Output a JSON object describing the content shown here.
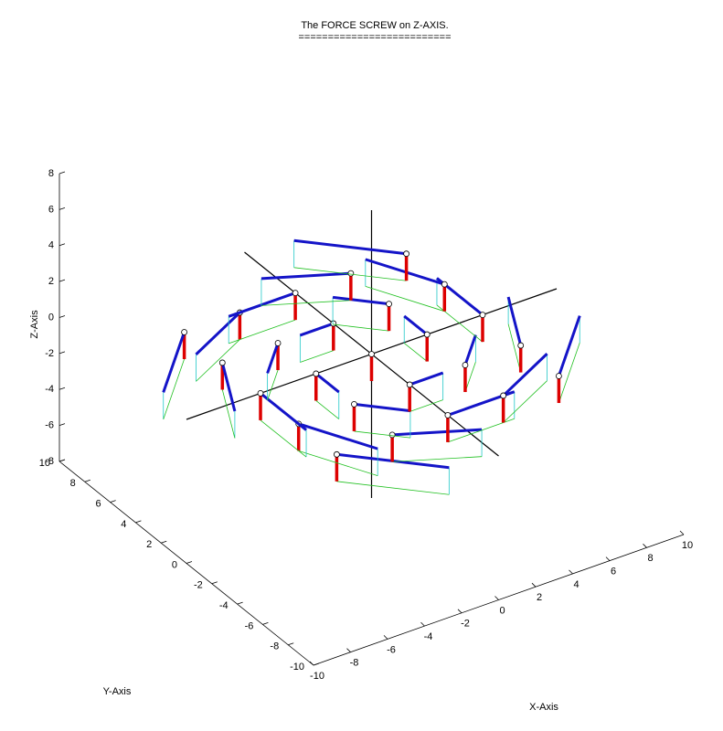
{
  "chart_data": {
    "type": "quiver3",
    "title": "The FORCE SCREW on Z-AXIS.",
    "subtitle": "==========================",
    "xlabel": "X-Axis",
    "ylabel": "Y-Axis",
    "zlabel": "Z-Axis",
    "xlim": [
      -10,
      10
    ],
    "ylim": [
      -10,
      10
    ],
    "zlim": [
      -8,
      8
    ],
    "xticks": [
      -10,
      -8,
      -6,
      -4,
      -2,
      0,
      2,
      4,
      6,
      8,
      10
    ],
    "yticks": [
      -10,
      -8,
      -6,
      -4,
      -2,
      0,
      2,
      4,
      6,
      8,
      10
    ],
    "zticks": [
      -8,
      -6,
      -4,
      -2,
      0,
      2,
      4,
      6,
      8
    ],
    "color": "#1414c8",
    "vertical_color": "#dd0000",
    "x": [
      -6,
      -3,
      0,
      3,
      6,
      -6,
      -3,
      0,
      3,
      6,
      -6,
      -3,
      0,
      3,
      6,
      -6,
      -3,
      0,
      3,
      6,
      -6,
      -3,
      0,
      3,
      6
    ],
    "y": [
      -6,
      -6,
      -6,
      -6,
      -6,
      -3,
      -3,
      -3,
      -3,
      -3,
      0,
      0,
      0,
      0,
      0,
      3,
      3,
      3,
      3,
      3,
      6,
      6,
      6,
      6,
      6
    ],
    "z": [
      0,
      0,
      0,
      0,
      0,
      0,
      0,
      0,
      0,
      0,
      0,
      0,
      0,
      0,
      0,
      0,
      0,
      0,
      0,
      0,
      0,
      0,
      0,
      0,
      0
    ],
    "u": [
      3.6,
      3.6,
      3.6,
      3.6,
      3.6,
      1.8,
      1.8,
      1.8,
      1.8,
      1.8,
      0,
      0,
      0,
      0,
      0,
      -1.8,
      -1.8,
      -1.8,
      -1.8,
      -1.8,
      -3.6,
      -3.6,
      -3.6,
      -3.6,
      -3.6
    ],
    "v": [
      -3.6,
      -1.8,
      0,
      1.8,
      3.6,
      -3.6,
      -1.8,
      0,
      1.8,
      3.6,
      -3.6,
      -1.8,
      0,
      1.8,
      3.6,
      -3.6,
      -1.8,
      0,
      1.8,
      3.6,
      -3.6,
      -1.8,
      0,
      1.8,
      3.6
    ],
    "w": [
      -1.5,
      -1.5,
      -1.5,
      -1.5,
      -1.5,
      -1.5,
      -1.5,
      -1.5,
      -1.5,
      -1.5,
      -1.5,
      -1.5,
      -1.5,
      -1.5,
      -1.5,
      -1.5,
      -1.5,
      -1.5,
      -1.5,
      -1.5,
      -1.5,
      -1.5,
      -1.5,
      -1.5,
      -1.5
    ]
  }
}
